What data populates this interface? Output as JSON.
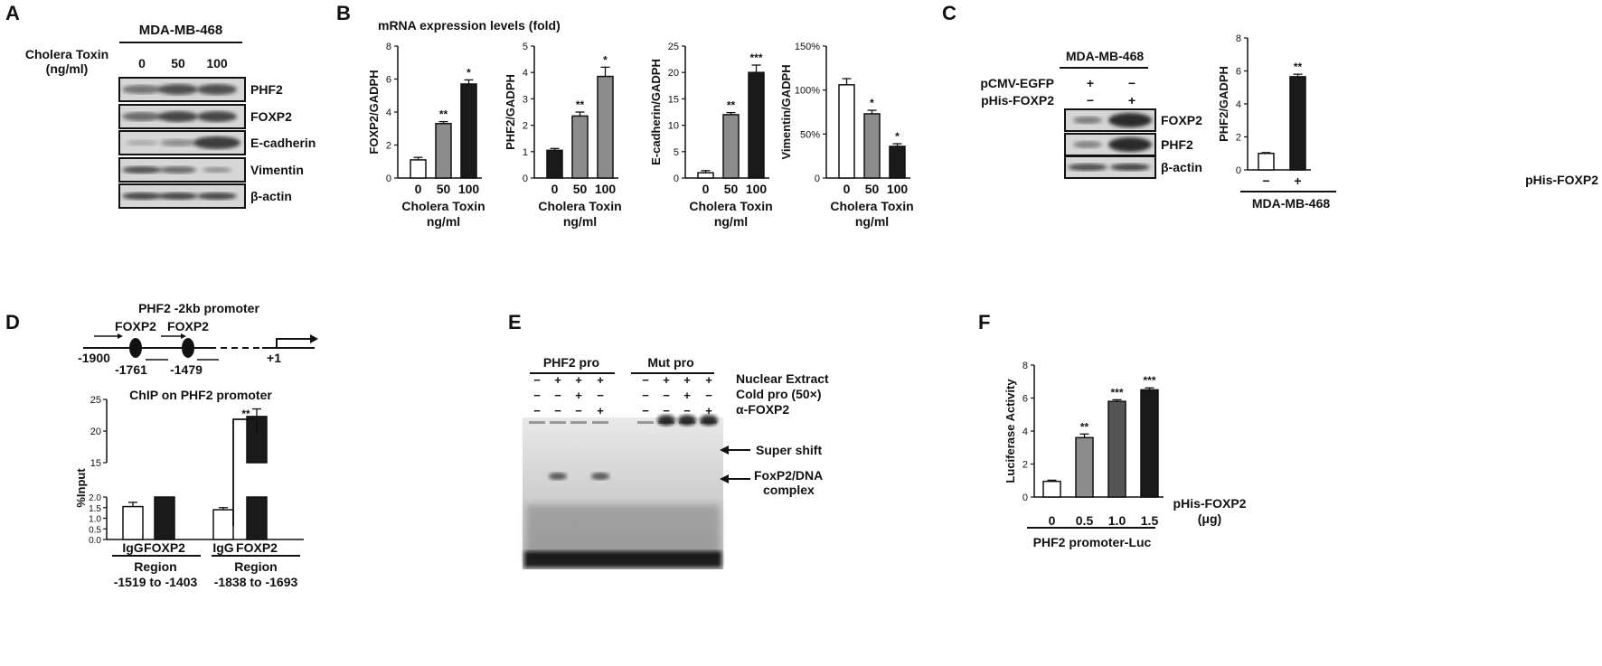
{
  "panels": {
    "A": {
      "letter": "A",
      "cell": "MDA-MB-468",
      "treat_label": [
        "Cholera Toxin",
        "(ng/ml)"
      ],
      "doses": [
        "0",
        "50",
        "100"
      ],
      "bands": [
        "PHF2",
        "FOXP2",
        "E-cadherin",
        "Vimentin",
        "β-actin"
      ]
    },
    "B": {
      "letter": "B",
      "title": "mRNA  expression levels (fold)"
    },
    "C": {
      "letter": "C",
      "cell": "MDA-MB-468",
      "rows": [
        "pCMV-EGFP",
        "pHis-FOXP2"
      ],
      "signs": [
        [
          "+",
          "−"
        ],
        [
          "−",
          "+"
        ]
      ],
      "bands": [
        "FOXP2",
        "PHF2",
        "β-actin"
      ],
      "bar_x_label": "pHis-FOXP2",
      "bar_cell": "MDA-MB-468"
    },
    "D": {
      "letter": "D",
      "diagram_title": "PHF2 -2kb promoter",
      "sites": [
        "FOXP2",
        "FOXP2"
      ],
      "positions": [
        "-1900",
        "-1761",
        "-1479",
        "+1"
      ],
      "regions": [
        [
          "Region",
          "-1519 to -1403"
        ],
        [
          "Region",
          "-1838 to -1693"
        ]
      ]
    },
    "E": {
      "letter": "E",
      "groups": [
        "PHF2 pro",
        "Mut pro"
      ],
      "row_labels": [
        "Nuclear Extract",
        "Cold pro (50×)",
        "α-FOXP2"
      ],
      "signs": [
        [
          "−",
          "+",
          "+",
          "+",
          "−",
          "+",
          "+",
          "+"
        ],
        [
          "−",
          "−",
          "+",
          "−",
          "−",
          "−",
          "+",
          "−"
        ],
        [
          "−",
          "−",
          "−",
          "+",
          "−",
          "−",
          "−",
          "+"
        ]
      ],
      "arrows": [
        "Super shift",
        "FoxP2/DNA",
        "complex"
      ]
    },
    "F": {
      "letter": "F",
      "x_title": [
        "pHis-FOXP2",
        "(μg)"
      ],
      "construct": "PHF2 promoter-Luc"
    }
  },
  "chart_data": [
    {
      "id": "B1",
      "type": "bar",
      "categories": [
        "0",
        "50",
        "100"
      ],
      "values": [
        1.1,
        3.3,
        5.7
      ],
      "errors": [
        0.15,
        0.12,
        0.25
      ],
      "sig": [
        "",
        "**",
        "*"
      ],
      "ylabel": "FOXP2/GADPH",
      "xlabel": [
        "Cholera Toxin",
        "ng/ml"
      ],
      "ylim": [
        0,
        8
      ],
      "yticks": [
        "0",
        "2",
        "4",
        "6",
        "8"
      ],
      "fills": [
        "#ffffff",
        "#8c8c8c",
        "#1a1a1a"
      ]
    },
    {
      "id": "B2",
      "type": "bar",
      "categories": [
        "0",
        "50",
        "100"
      ],
      "values": [
        1.05,
        2.35,
        3.85
      ],
      "errors": [
        0.07,
        0.15,
        0.35
      ],
      "sig": [
        "",
        "**",
        "*"
      ],
      "ylabel": "PHF2/GADPH",
      "xlabel": [
        "Cholera Toxin",
        "ng/ml"
      ],
      "ylim": [
        0,
        5
      ],
      "yticks": [
        "0",
        "1",
        "2",
        "3",
        "4",
        "5"
      ],
      "fills": [
        "#1a1a1a",
        "#8c8c8c",
        "#8c8c8c"
      ]
    },
    {
      "id": "B3",
      "type": "bar",
      "categories": [
        "0",
        "50",
        "100"
      ],
      "values": [
        1.0,
        12.0,
        20.0
      ],
      "errors": [
        0.4,
        0.4,
        1.4
      ],
      "sig": [
        "",
        "**",
        "***"
      ],
      "ylabel": "E-cadherin/GADPH",
      "xlabel": [
        "Cholera Toxin",
        "ng/ml"
      ],
      "ylim": [
        0,
        25
      ],
      "yticks": [
        "0",
        "5",
        "10",
        "15",
        "20",
        "25"
      ],
      "fills": [
        "#ffffff",
        "#8c8c8c",
        "#1a1a1a"
      ]
    },
    {
      "id": "B4",
      "type": "bar",
      "categories": [
        "0",
        "50",
        "100"
      ],
      "values": [
        106,
        73,
        36
      ],
      "errors": [
        7,
        4,
        3
      ],
      "sig": [
        "",
        "*",
        "*"
      ],
      "ylabel": "Vimentin/GADPH",
      "xlabel": [
        "Cholera Toxin",
        "ng/ml"
      ],
      "ylim": [
        0,
        150
      ],
      "yticks": [
        "0",
        "50%",
        "100%",
        "150%"
      ],
      "fills": [
        "#ffffff",
        "#8c8c8c",
        "#1a1a1a"
      ]
    },
    {
      "id": "C",
      "type": "bar",
      "categories": [
        "−",
        "+"
      ],
      "values": [
        1.0,
        5.65
      ],
      "errors": [
        0.05,
        0.15
      ],
      "sig": [
        "",
        "**"
      ],
      "ylabel": "PHF2/GADPH",
      "ylim": [
        0,
        8
      ],
      "yticks": [
        "0",
        "2",
        "4",
        "6",
        "8"
      ],
      "fills": [
        "#ffffff",
        "#1a1a1a"
      ]
    },
    {
      "id": "D",
      "type": "bar",
      "title": "ChIP on PHF2 promoter",
      "ylabel": "%Input",
      "categories": [
        "IgG",
        "FOXP2",
        "IgG",
        "FOXP2"
      ],
      "values": [
        1.55,
        2.0,
        1.4,
        22.3
      ],
      "errors": [
        0.2,
        0,
        0.1,
        1.2
      ],
      "ylim": [
        0,
        25
      ],
      "yticks_low": [
        "0.0",
        "0.5",
        "1.0",
        "1.5",
        "2.0"
      ],
      "yticks_high": [
        "15",
        "20",
        "25"
      ],
      "bracket_sig": "**",
      "fills": [
        "#ffffff",
        "#1a1a1a",
        "#ffffff",
        "#1a1a1a"
      ]
    },
    {
      "id": "F",
      "type": "bar",
      "categories": [
        "0",
        "0.5",
        "1.0",
        "1.5"
      ],
      "values": [
        0.95,
        3.6,
        5.8,
        6.5
      ],
      "errors": [
        0.07,
        0.22,
        0.1,
        0.12
      ],
      "sig": [
        "",
        "**",
        "***",
        "***"
      ],
      "ylabel": "Luciferase Activity",
      "ylim": [
        0,
        8
      ],
      "yticks": [
        "0",
        "2",
        "4",
        "6",
        "8"
      ],
      "fills": [
        "#ffffff",
        "#8c8c8c",
        "#555555",
        "#1a1a1a"
      ]
    }
  ]
}
